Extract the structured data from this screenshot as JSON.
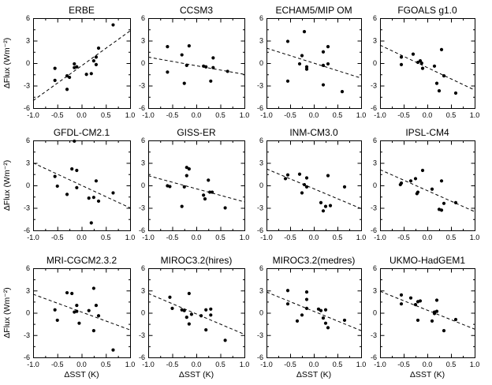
{
  "figure": {
    "ink": "#000000",
    "background": "#ffffff"
  },
  "axes": {
    "xlabel": "ΔSST (K)",
    "ylabel": "ΔFlux (Wm⁻²)",
    "xlim": [
      -1.0,
      1.0
    ],
    "ylim": [
      -6,
      6
    ],
    "xticks": [
      -1.0,
      -0.5,
      0.0,
      0.5,
      1.0
    ],
    "x_tick_labels": [
      "-1.0",
      "-0.5",
      "0.0",
      "0.5",
      "1.0"
    ],
    "yticks": [
      -6,
      -3,
      0,
      3,
      6
    ],
    "y_tick_labels": [
      "-6",
      "-3",
      "0",
      "3",
      "6"
    ],
    "x_minor_step": 0.25,
    "y_minor_step": 1.5,
    "grid": false
  },
  "chart_data": [
    {
      "type": "scatter",
      "title": "ERBE",
      "row": 0,
      "col": 0,
      "xlabel": "",
      "ylabel": "ΔFlux (Wm⁻²)",
      "xlim": [
        -1.0,
        1.0
      ],
      "ylim": [
        -6,
        6
      ],
      "points": [
        [
          0.65,
          5.1
        ],
        [
          0.35,
          2.0
        ],
        [
          0.3,
          0.8
        ],
        [
          0.25,
          0.3
        ],
        [
          0.3,
          -0.2
        ],
        [
          0.1,
          -1.5
        ],
        [
          0.2,
          -1.4
        ],
        [
          -0.1,
          -0.5
        ],
        [
          -0.15,
          -0.1
        ],
        [
          -0.15,
          -0.6
        ],
        [
          -0.3,
          -1.7
        ],
        [
          -0.25,
          -1.9
        ],
        [
          -0.55,
          -0.7
        ],
        [
          -0.55,
          -2.3
        ],
        [
          -0.3,
          -3.5
        ]
      ],
      "trend": [
        [
          -1.0,
          -5.0
        ],
        [
          1.0,
          4.3
        ]
      ]
    },
    {
      "type": "scatter",
      "title": "CCSM3",
      "row": 0,
      "col": 1,
      "xlabel": "",
      "ylabel": "",
      "xlim": [
        -1.0,
        1.0
      ],
      "ylim": [
        -6,
        6
      ],
      "points": [
        [
          -0.6,
          2.2
        ],
        [
          -0.3,
          1.1
        ],
        [
          -0.15,
          2.3
        ],
        [
          -0.2,
          -0.3
        ],
        [
          -0.6,
          -1.2
        ],
        [
          -0.25,
          -2.7
        ],
        [
          0.15,
          -0.4
        ],
        [
          0.2,
          -0.5
        ],
        [
          0.35,
          0.7
        ],
        [
          0.35,
          -0.6
        ],
        [
          0.3,
          -2.4
        ],
        [
          0.65,
          -1.1
        ]
      ],
      "trend": [
        [
          -1.0,
          0.8
        ],
        [
          1.0,
          -1.5
        ]
      ]
    },
    {
      "type": "scatter",
      "title": "ECHAM5/MIP OM",
      "row": 0,
      "col": 2,
      "xlabel": "",
      "ylabel": "",
      "xlim": [
        -1.0,
        1.0
      ],
      "ylim": [
        -6,
        6
      ],
      "points": [
        [
          -0.55,
          2.9
        ],
        [
          -0.2,
          4.2
        ],
        [
          -0.25,
          1.0
        ],
        [
          -0.3,
          -0.1
        ],
        [
          -0.15,
          -0.5
        ],
        [
          -0.15,
          -0.8
        ],
        [
          0.2,
          1.5
        ],
        [
          0.3,
          2.2
        ],
        [
          0.3,
          -0.1
        ],
        [
          0.2,
          -0.3
        ],
        [
          -0.55,
          -2.4
        ],
        [
          0.2,
          -2.9
        ],
        [
          0.6,
          -3.8
        ]
      ],
      "trend": [
        [
          -1.0,
          2.0
        ],
        [
          1.0,
          -2.0
        ]
      ]
    },
    {
      "type": "scatter",
      "title": "FGOALS g1.0",
      "row": 0,
      "col": 3,
      "xlabel": "",
      "ylabel": "",
      "xlim": [
        -1.0,
        1.0
      ],
      "ylim": [
        -6,
        6
      ],
      "points": [
        [
          -0.55,
          0.8
        ],
        [
          -0.55,
          -0.2
        ],
        [
          -0.3,
          1.2
        ],
        [
          -0.2,
          0.1
        ],
        [
          -0.15,
          0.3
        ],
        [
          -0.12,
          0.0
        ],
        [
          -0.1,
          -0.7
        ],
        [
          0.15,
          -0.4
        ],
        [
          0.3,
          1.8
        ],
        [
          0.35,
          -1.7
        ],
        [
          0.2,
          -2.7
        ],
        [
          0.25,
          -3.7
        ],
        [
          0.6,
          -4.0
        ]
      ],
      "trend": [
        [
          -1.0,
          2.4
        ],
        [
          1.0,
          -3.6
        ]
      ]
    },
    {
      "type": "scatter",
      "title": "GFDL-CM2.1",
      "row": 1,
      "col": 0,
      "xlabel": "",
      "ylabel": "ΔFlux (Wm⁻²)",
      "xlim": [
        -1.0,
        1.0
      ],
      "ylim": [
        -6,
        6
      ],
      "points": [
        [
          -0.15,
          5.9
        ],
        [
          -0.2,
          2.2
        ],
        [
          -0.1,
          2.0
        ],
        [
          -0.55,
          1.2
        ],
        [
          -0.5,
          -0.1
        ],
        [
          -0.3,
          -1.2
        ],
        [
          -0.1,
          -0.3
        ],
        [
          0.3,
          0.6
        ],
        [
          0.15,
          -1.7
        ],
        [
          0.25,
          -1.6
        ],
        [
          0.35,
          -2.1
        ],
        [
          0.65,
          -1.0
        ],
        [
          0.2,
          -5.0
        ]
      ],
      "trend": [
        [
          -1.0,
          3.0
        ],
        [
          1.0,
          -3.0
        ]
      ]
    },
    {
      "type": "scatter",
      "title": "GISS-ER",
      "row": 1,
      "col": 1,
      "xlabel": "",
      "ylabel": "",
      "xlim": [
        -1.0,
        1.0
      ],
      "ylim": [
        -6,
        6
      ],
      "points": [
        [
          -0.2,
          2.4
        ],
        [
          -0.15,
          2.2
        ],
        [
          -0.2,
          1.3
        ],
        [
          -0.6,
          -0.05
        ],
        [
          -0.55,
          -0.15
        ],
        [
          -0.25,
          -0.2
        ],
        [
          0.25,
          0.7
        ],
        [
          0.15,
          -1.3
        ],
        [
          0.18,
          -1.8
        ],
        [
          0.28,
          -0.9
        ],
        [
          0.33,
          -0.9
        ],
        [
          -0.3,
          -2.8
        ],
        [
          0.6,
          -3.0
        ]
      ],
      "trend": [
        [
          -1.0,
          1.3
        ],
        [
          1.0,
          -2.2
        ]
      ]
    },
    {
      "type": "scatter",
      "title": "INM-CM3.0",
      "row": 1,
      "col": 2,
      "xlabel": "",
      "ylabel": "",
      "xlim": [
        -1.0,
        1.0
      ],
      "ylim": [
        -6,
        6
      ],
      "points": [
        [
          -0.55,
          1.4
        ],
        [
          -0.6,
          0.9
        ],
        [
          -0.3,
          1.5
        ],
        [
          -0.15,
          1.0
        ],
        [
          -0.2,
          0.1
        ],
        [
          -0.15,
          -0.2
        ],
        [
          -0.25,
          -1.0
        ],
        [
          0.3,
          1.3
        ],
        [
          0.15,
          -2.3
        ],
        [
          0.25,
          -2.8
        ],
        [
          0.35,
          -2.7
        ],
        [
          0.2,
          -3.4
        ],
        [
          0.65,
          -0.2
        ]
      ],
      "trend": [
        [
          -1.0,
          2.2
        ],
        [
          1.0,
          -3.1
        ]
      ]
    },
    {
      "type": "scatter",
      "title": "IPSL-CM4",
      "row": 1,
      "col": 3,
      "xlabel": "",
      "ylabel": "",
      "xlim": [
        -1.0,
        1.0
      ],
      "ylim": [
        -6,
        6
      ],
      "points": [
        [
          -0.55,
          0.3
        ],
        [
          -0.57,
          0.1
        ],
        [
          -0.35,
          0.6
        ],
        [
          -0.25,
          0.9
        ],
        [
          -0.1,
          2.0
        ],
        [
          -0.2,
          -0.9
        ],
        [
          -0.22,
          -1.1
        ],
        [
          0.1,
          -0.5
        ],
        [
          0.3,
          0.6
        ],
        [
          0.25,
          -3.2
        ],
        [
          0.3,
          -3.3
        ],
        [
          0.35,
          -2.4
        ],
        [
          0.6,
          -2.3
        ]
      ],
      "trend": [
        [
          -1.0,
          2.1
        ],
        [
          1.0,
          -3.5
        ]
      ]
    },
    {
      "type": "scatter",
      "title": "MRI-CGCM2.3.2",
      "row": 2,
      "col": 0,
      "xlabel": "ΔSST (K)",
      "ylabel": "ΔFlux (Wm⁻²)",
      "xlim": [
        -1.0,
        1.0
      ],
      "ylim": [
        -6,
        6
      ],
      "points": [
        [
          -0.3,
          2.7
        ],
        [
          -0.2,
          2.6
        ],
        [
          0.25,
          3.3
        ],
        [
          -0.55,
          0.4
        ],
        [
          -0.1,
          1.0
        ],
        [
          -0.1,
          0.2
        ],
        [
          -0.15,
          0.1
        ],
        [
          0.15,
          0.3
        ],
        [
          0.3,
          1.0
        ],
        [
          0.35,
          -0.4
        ],
        [
          -0.5,
          -1.0
        ],
        [
          -0.05,
          -1.4
        ],
        [
          0.25,
          -2.4
        ],
        [
          0.65,
          -5.0
        ]
      ],
      "trend": [
        [
          -1.0,
          2.5
        ],
        [
          1.0,
          -2.3
        ]
      ]
    },
    {
      "type": "scatter",
      "title": "MIROC3.2(hires)",
      "row": 2,
      "col": 1,
      "xlabel": "ΔSST (K)",
      "ylabel": "",
      "xlim": [
        -1.0,
        1.0
      ],
      "ylim": [
        -6,
        6
      ],
      "points": [
        [
          -0.55,
          2.1
        ],
        [
          -0.5,
          0.6
        ],
        [
          -0.3,
          0.4
        ],
        [
          -0.25,
          0.3
        ],
        [
          -0.15,
          2.6
        ],
        [
          -0.2,
          -0.6
        ],
        [
          -0.1,
          -0.2
        ],
        [
          -0.15,
          -1.5
        ],
        [
          0.1,
          -0.4
        ],
        [
          0.2,
          0.4
        ],
        [
          0.3,
          0.5
        ],
        [
          0.3,
          -0.3
        ],
        [
          0.2,
          -2.3
        ],
        [
          0.6,
          -3.7
        ]
      ],
      "trend": [
        [
          -1.0,
          2.6
        ],
        [
          1.0,
          -2.9
        ]
      ]
    },
    {
      "type": "scatter",
      "title": "MIROC3.2(medres)",
      "row": 2,
      "col": 2,
      "xlabel": "ΔSST (K)",
      "ylabel": "",
      "xlim": [
        -1.0,
        1.0
      ],
      "ylim": [
        -6,
        6
      ],
      "points": [
        [
          -0.55,
          3.0
        ],
        [
          -0.55,
          1.2
        ],
        [
          -0.15,
          2.8
        ],
        [
          -0.15,
          1.8
        ],
        [
          -0.15,
          0.6
        ],
        [
          -0.25,
          -0.3
        ],
        [
          -0.35,
          -1.1
        ],
        [
          0.1,
          0.5
        ],
        [
          0.15,
          0.3
        ],
        [
          0.25,
          0.4
        ],
        [
          0.2,
          -0.7
        ],
        [
          0.25,
          -1.4
        ],
        [
          0.3,
          -2.0
        ],
        [
          0.65,
          -1.0
        ]
      ],
      "trend": [
        [
          -1.0,
          2.8
        ],
        [
          1.0,
          -2.4
        ]
      ]
    },
    {
      "type": "scatter",
      "title": "UKMO-HadGEM1",
      "row": 2,
      "col": 3,
      "xlabel": "ΔSST (K)",
      "ylabel": "",
      "xlim": [
        -1.0,
        1.0
      ],
      "ylim": [
        -6,
        6
      ],
      "points": [
        [
          -0.55,
          2.4
        ],
        [
          -0.55,
          1.2
        ],
        [
          -0.35,
          2.0
        ],
        [
          -0.2,
          1.5
        ],
        [
          -0.15,
          1.6
        ],
        [
          -0.25,
          1.1
        ],
        [
          -0.2,
          -1.0
        ],
        [
          0.2,
          1.7
        ],
        [
          0.15,
          0.1
        ],
        [
          0.2,
          0.2
        ],
        [
          0.15,
          -0.1
        ],
        [
          0.1,
          -1.1
        ],
        [
          0.35,
          -2.4
        ],
        [
          0.6,
          -0.9
        ]
      ],
      "trend": [
        [
          -1.0,
          2.9
        ],
        [
          1.0,
          -2.2
        ]
      ]
    }
  ]
}
